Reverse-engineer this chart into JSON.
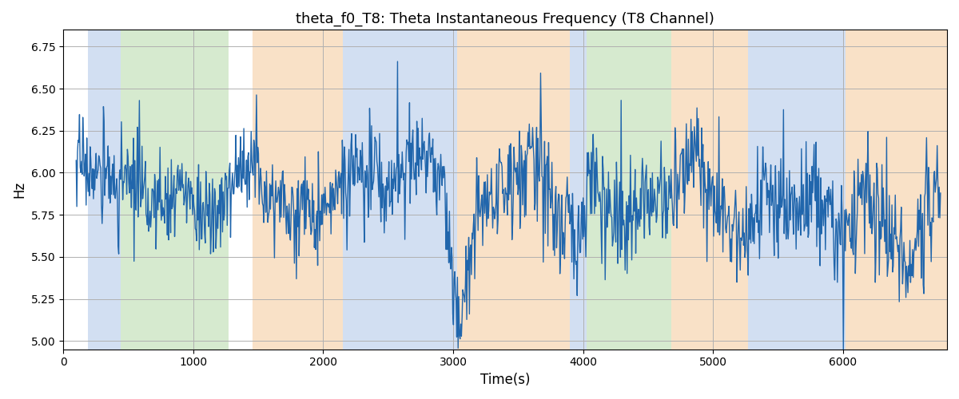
{
  "title": "theta_f0_T8: Theta Instantaneous Frequency (T8 Channel)",
  "xlabel": "Time(s)",
  "ylabel": "Hz",
  "ylim": [
    4.95,
    6.85
  ],
  "xlim": [
    0,
    6800
  ],
  "yticks": [
    5.0,
    5.25,
    5.5,
    5.75,
    6.0,
    6.25,
    6.5,
    6.75
  ],
  "xticks": [
    0,
    1000,
    2000,
    3000,
    4000,
    5000,
    6000
  ],
  "line_color": "#2166ac",
  "line_width": 1.0,
  "bg_bands": [
    {
      "xmin": 190,
      "xmax": 440,
      "color": "#aec6e8",
      "alpha": 0.55
    },
    {
      "xmin": 440,
      "xmax": 1270,
      "color": "#b5d9a8",
      "alpha": 0.55
    },
    {
      "xmin": 1460,
      "xmax": 2150,
      "color": "#f5c999",
      "alpha": 0.55
    },
    {
      "xmin": 2150,
      "xmax": 3030,
      "color": "#aec6e8",
      "alpha": 0.55
    },
    {
      "xmin": 3030,
      "xmax": 3900,
      "color": "#f5c999",
      "alpha": 0.55
    },
    {
      "xmin": 3900,
      "xmax": 4030,
      "color": "#aec6e8",
      "alpha": 0.55
    },
    {
      "xmin": 4030,
      "xmax": 4680,
      "color": "#b5d9a8",
      "alpha": 0.55
    },
    {
      "xmin": 4680,
      "xmax": 5270,
      "color": "#f5c999",
      "alpha": 0.55
    },
    {
      "xmin": 5270,
      "xmax": 6020,
      "color": "#aec6e8",
      "alpha": 0.55
    },
    {
      "xmin": 6020,
      "xmax": 6800,
      "color": "#f5c999",
      "alpha": 0.55
    }
  ],
  "seed": 17,
  "n_points": 1300,
  "x_start": 100,
  "x_end": 6750,
  "figsize": [
    12.0,
    5.0
  ],
  "dpi": 100,
  "grid_color": "#b0b0b0",
  "grid_linewidth": 0.7
}
